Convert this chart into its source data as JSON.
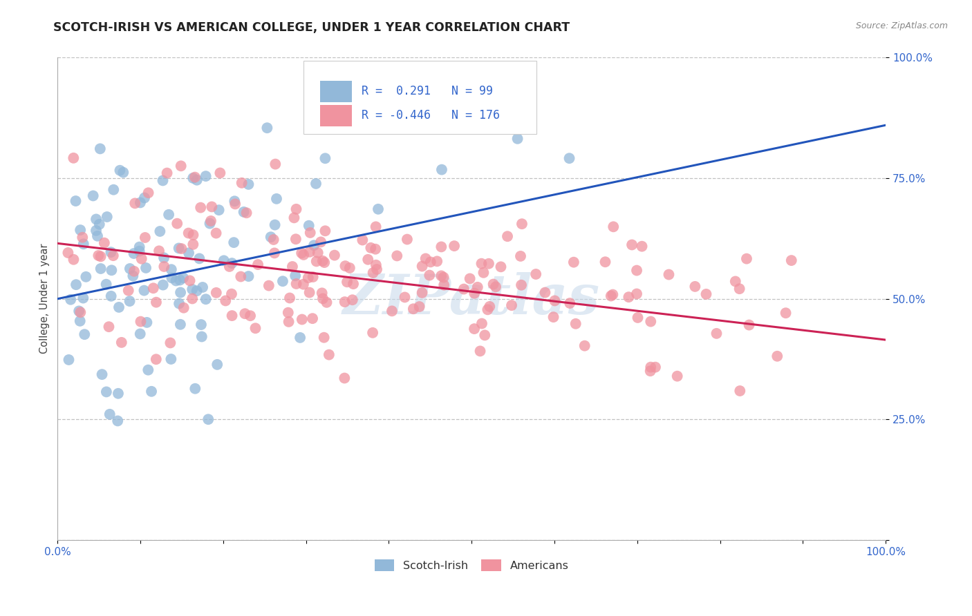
{
  "title": "SCOTCH-IRISH VS AMERICAN COLLEGE, UNDER 1 YEAR CORRELATION CHART",
  "source": "Source: ZipAtlas.com",
  "ylabel": "College, Under 1 year",
  "xlim": [
    0.0,
    1.0
  ],
  "ylim": [
    0.0,
    1.0
  ],
  "legend_entries": [
    {
      "label": "Scotch-Irish",
      "R": 0.291,
      "N": 99
    },
    {
      "label": "Americans",
      "R": -0.446,
      "N": 176
    }
  ],
  "scotch_irish_color": "#92b8d9",
  "americans_color": "#f0939f",
  "scotch_irish_line_color": "#2255bb",
  "americans_line_color": "#cc2255",
  "watermark": "ZIPatlas",
  "background_color": "#ffffff",
  "grid_color": "#bbbbbb",
  "si_line_x0": 0.0,
  "si_line_y0": 0.5,
  "si_line_x1": 1.0,
  "si_line_y1": 0.86,
  "am_line_x0": 0.0,
  "am_line_y0": 0.615,
  "am_line_x1": 1.0,
  "am_line_y1": 0.415
}
